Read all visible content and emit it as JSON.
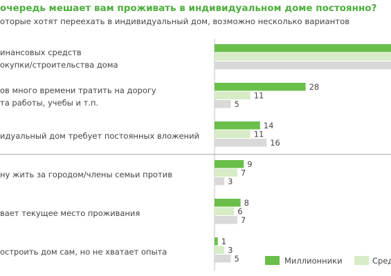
{
  "chart_data": {
    "type": "bar",
    "orientation": "horizontal",
    "title": "очередь мешает вам проживать в индивидуальном доме постоянно?",
    "subtitle": "оторые хотят переехать в индивидуальный дом, возможно несколько вариантов",
    "categories": [
      [
        "инансовых средств",
        "окупки/строительства дома"
      ],
      [
        "ов много времени тратить на дорогу",
        "та работы, учебы  и т.п."
      ],
      [
        "идуальный дом требует постоянных вложений"
      ],
      [
        "ну жить за городом/члены семьи против"
      ],
      [
        "вает текущее место проживания"
      ],
      [
        "остроить дом сам, но не хватает опыта"
      ]
    ],
    "series": [
      {
        "name": "Миллионники",
        "color": "#6abf4b",
        "values": [
          null,
          28,
          14,
          9,
          8,
          1
        ],
        "labels": [
          "",
          "28",
          "14",
          "9",
          "8",
          "1"
        ]
      },
      {
        "name": "Сред",
        "color": "#d7ecc6",
        "values": [
          null,
          11,
          11,
          7,
          6,
          3
        ],
        "labels": [
          "",
          "11",
          "11",
          "7",
          "6",
          "3"
        ]
      },
      {
        "name": "",
        "color": "#d9d9d9",
        "values": [
          null,
          5,
          16,
          3,
          7,
          5
        ],
        "labels": [
          "",
          "5",
          "16",
          "3",
          "7",
          "5"
        ]
      }
    ],
    "first_group_extends_past_edge": true,
    "xlim": [
      0,
      60
    ],
    "grid": false,
    "legend": "bottom-right",
    "separator_after_group": 2
  }
}
